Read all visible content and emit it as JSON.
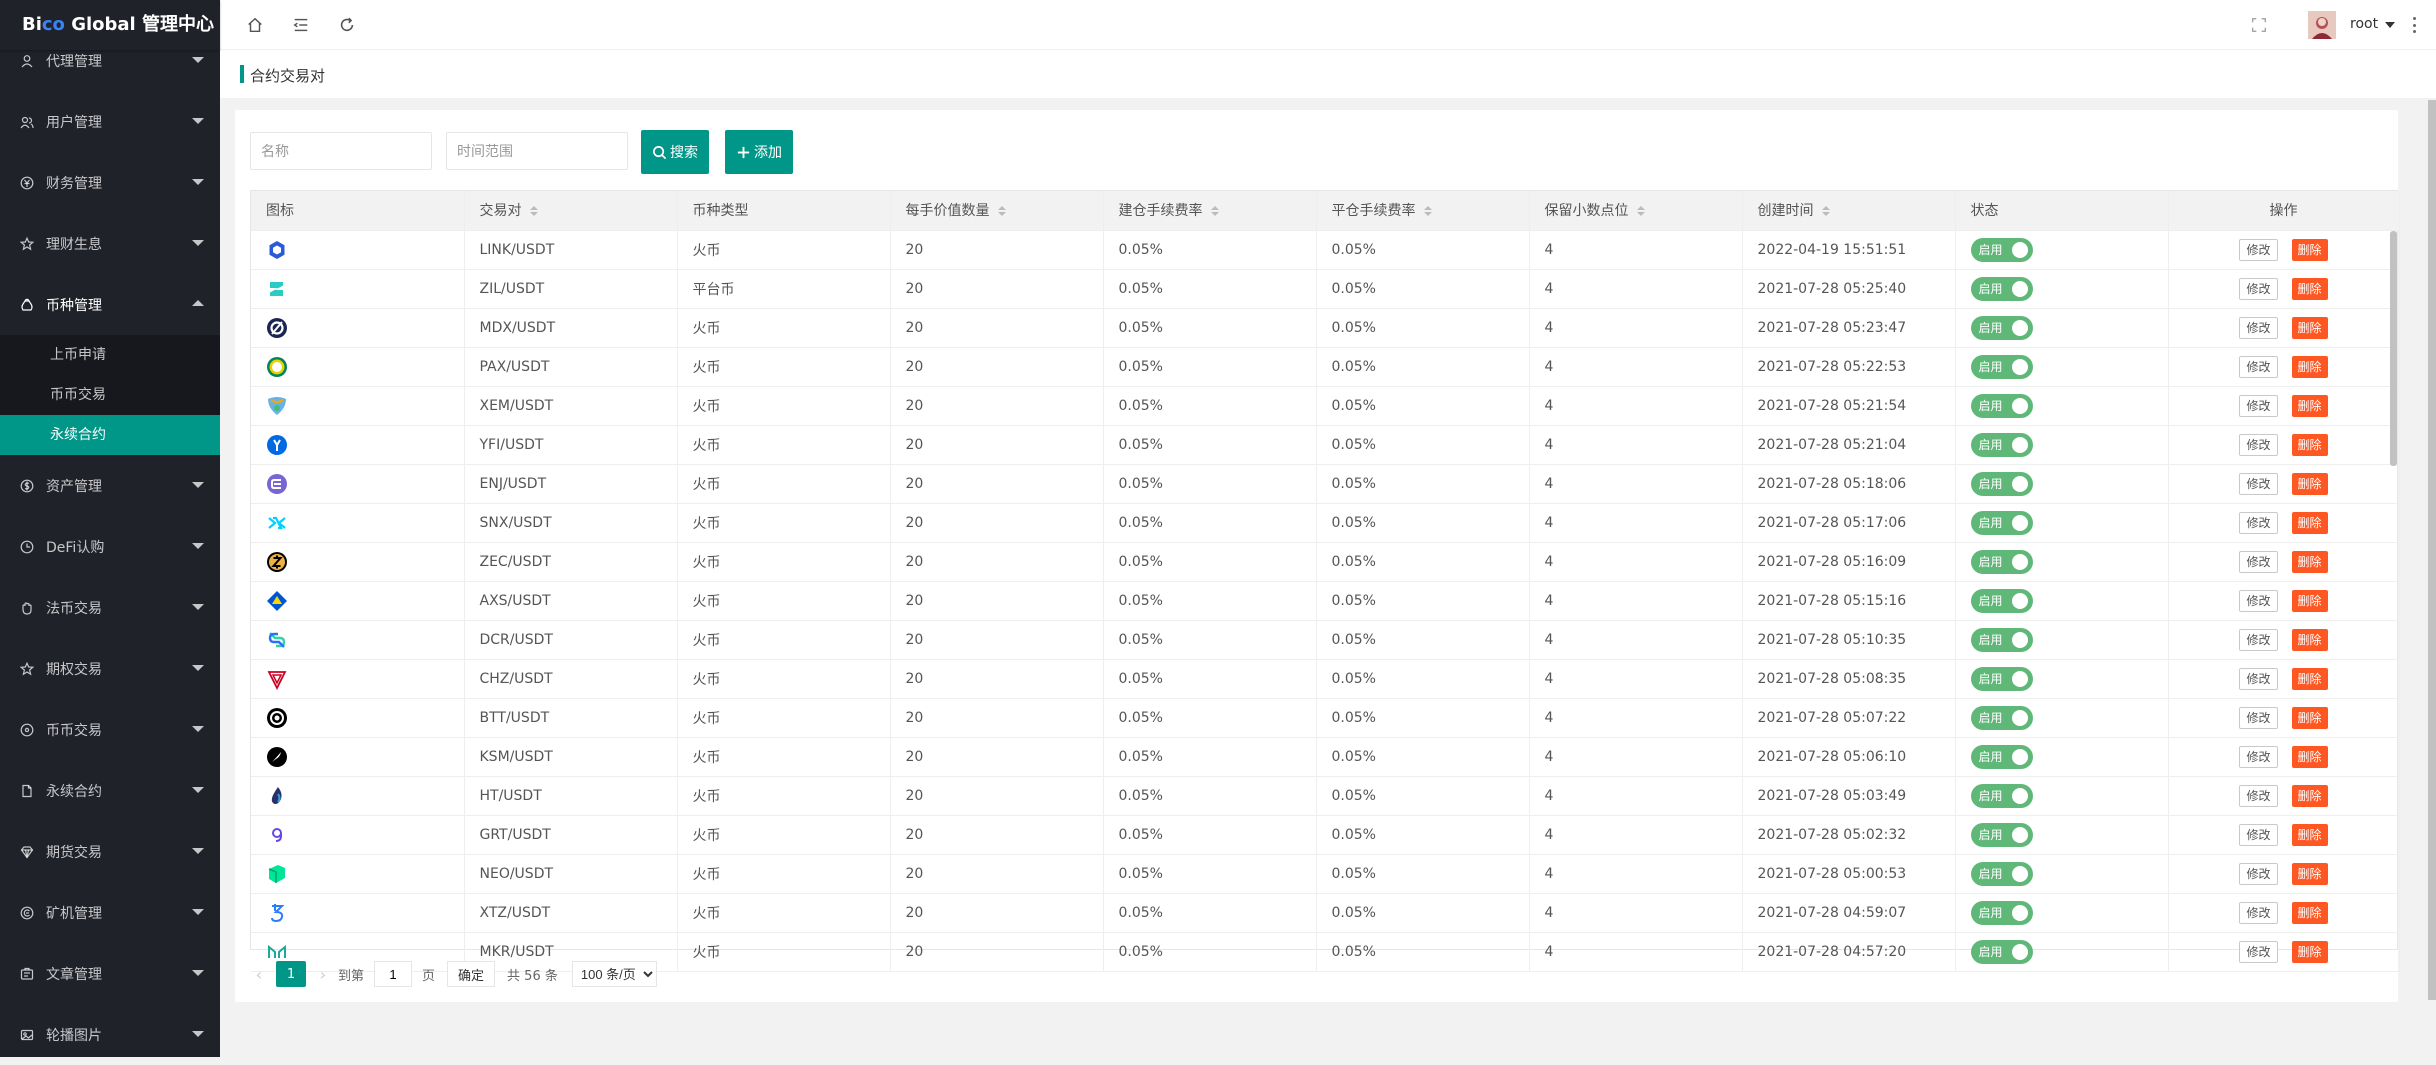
{
  "brand": {
    "part1": "Bi",
    "part2": "co",
    "part3": " Global 管理中心"
  },
  "sidebar": {
    "items": [
      {
        "label": "代理管理",
        "icon": "user-icon"
      },
      {
        "label": "用户管理",
        "icon": "users-icon"
      },
      {
        "label": "财务管理",
        "icon": "finance-icon"
      },
      {
        "label": "理财生息",
        "icon": "star-icon"
      },
      {
        "label": "币种管理",
        "icon": "coin-manage-icon",
        "open": true,
        "sub": [
          {
            "label": "上币申请"
          },
          {
            "label": "币币交易"
          },
          {
            "label": "永续合约",
            "active": true
          }
        ]
      },
      {
        "label": "资产管理",
        "icon": "asset-icon"
      },
      {
        "label": "DeFi认购",
        "icon": "clock-icon"
      },
      {
        "label": "法币交易",
        "icon": "hand-icon"
      },
      {
        "label": "期权交易",
        "icon": "star-icon"
      },
      {
        "label": "币币交易",
        "icon": "circle-icon"
      },
      {
        "label": "永续合约",
        "icon": "file-icon"
      },
      {
        "label": "期货交易",
        "icon": "diamond-icon"
      },
      {
        "label": "矿机管理",
        "icon": "mining-icon"
      },
      {
        "label": "文章管理",
        "icon": "article-icon"
      },
      {
        "label": "轮播图片",
        "icon": "image-icon"
      }
    ]
  },
  "header": {
    "username": "root"
  },
  "page": {
    "title": "合约交易对"
  },
  "search": {
    "name_placeholder": "名称",
    "time_placeholder": "时间范围",
    "search_label": "搜索",
    "add_label": "添加"
  },
  "table": {
    "columns": [
      "图标",
      "交易对",
      "币种类型",
      "每手价值数量",
      "建仓手续费率",
      "平仓手续费率",
      "保留小数点位",
      "创建时间",
      "状态",
      "操作"
    ],
    "sortable": [
      false,
      true,
      false,
      true,
      true,
      true,
      true,
      true,
      false,
      false
    ],
    "edit_label": "修改",
    "delete_label": "删除",
    "switch_label": "启用",
    "rows": [
      {
        "icon": "link-icon",
        "color": "#2a5ada",
        "pair": "LINK/USDT",
        "type": "火币",
        "qty": "20",
        "open_fee": "0.05%",
        "close_fee": "0.05%",
        "decimals": "4",
        "created": "2022-04-19 15:51:51"
      },
      {
        "icon": "zil-icon",
        "color": "#29ccc4",
        "pair": "ZIL/USDT",
        "type": "平台币",
        "qty": "20",
        "open_fee": "0.05%",
        "close_fee": "0.05%",
        "decimals": "4",
        "created": "2021-07-28 05:25:40"
      },
      {
        "icon": "mdx-icon",
        "color": "#1a2553",
        "pair": "MDX/USDT",
        "type": "火币",
        "qty": "20",
        "open_fee": "0.05%",
        "close_fee": "0.05%",
        "decimals": "4",
        "created": "2021-07-28 05:23:47"
      },
      {
        "icon": "pax-icon",
        "color": "#00845d",
        "pair": "PAX/USDT",
        "type": "火币",
        "qty": "20",
        "open_fee": "0.05%",
        "close_fee": "0.05%",
        "decimals": "4",
        "created": "2021-07-28 05:22:53"
      },
      {
        "icon": "xem-icon",
        "color": "#67b2e8",
        "pair": "XEM/USDT",
        "type": "火币",
        "qty": "20",
        "open_fee": "0.05%",
        "close_fee": "0.05%",
        "decimals": "4",
        "created": "2021-07-28 05:21:54"
      },
      {
        "icon": "yfi-icon",
        "color": "#006ae3",
        "pair": "YFI/USDT",
        "type": "火币",
        "qty": "20",
        "open_fee": "0.05%",
        "close_fee": "0.05%",
        "decimals": "4",
        "created": "2021-07-28 05:21:04"
      },
      {
        "icon": "enj-icon",
        "color": "#624dbf",
        "pair": "ENJ/USDT",
        "type": "火币",
        "qty": "20",
        "open_fee": "0.05%",
        "close_fee": "0.05%",
        "decimals": "4",
        "created": "2021-07-28 05:18:06"
      },
      {
        "icon": "snx-icon",
        "color": "#00d1ff",
        "pair": "SNX/USDT",
        "type": "火币",
        "qty": "20",
        "open_fee": "0.05%",
        "close_fee": "0.05%",
        "decimals": "4",
        "created": "2021-07-28 05:17:06"
      },
      {
        "icon": "zec-icon",
        "color": "#ecb244",
        "pair": "ZEC/USDT",
        "type": "火币",
        "qty": "20",
        "open_fee": "0.05%",
        "close_fee": "0.05%",
        "decimals": "4",
        "created": "2021-07-28 05:16:09"
      },
      {
        "icon": "axs-icon",
        "color": "#0055d5",
        "pair": "AXS/USDT",
        "type": "火币",
        "qty": "20",
        "open_fee": "0.05%",
        "close_fee": "0.05%",
        "decimals": "4",
        "created": "2021-07-28 05:15:16"
      },
      {
        "icon": "dcr-icon",
        "color": "#2ed6a1",
        "pair": "DCR/USDT",
        "type": "火币",
        "qty": "20",
        "open_fee": "0.05%",
        "close_fee": "0.05%",
        "decimals": "4",
        "created": "2021-07-28 05:10:35"
      },
      {
        "icon": "chz-icon",
        "color": "#cd0124",
        "pair": "CHZ/USDT",
        "type": "火币",
        "qty": "20",
        "open_fee": "0.05%",
        "close_fee": "0.05%",
        "decimals": "4",
        "created": "2021-07-28 05:08:35"
      },
      {
        "icon": "btt-icon",
        "color": "#000000",
        "pair": "BTT/USDT",
        "type": "火币",
        "qty": "20",
        "open_fee": "0.05%",
        "close_fee": "0.05%",
        "decimals": "4",
        "created": "2021-07-28 05:07:22"
      },
      {
        "icon": "ksm-icon",
        "color": "#000000",
        "pair": "KSM/USDT",
        "type": "火币",
        "qty": "20",
        "open_fee": "0.05%",
        "close_fee": "0.05%",
        "decimals": "4",
        "created": "2021-07-28 05:06:10"
      },
      {
        "icon": "ht-icon",
        "color": "#2a3069",
        "pair": "HT/USDT",
        "type": "火币",
        "qty": "20",
        "open_fee": "0.05%",
        "close_fee": "0.05%",
        "decimals": "4",
        "created": "2021-07-28 05:03:49"
      },
      {
        "icon": "grt-icon",
        "color": "#6747ed",
        "pair": "GRT/USDT",
        "type": "火币",
        "qty": "20",
        "open_fee": "0.05%",
        "close_fee": "0.05%",
        "decimals": "4",
        "created": "2021-07-28 05:02:32"
      },
      {
        "icon": "neo-icon",
        "color": "#00e599",
        "pair": "NEO/USDT",
        "type": "火币",
        "qty": "20",
        "open_fee": "0.05%",
        "close_fee": "0.05%",
        "decimals": "4",
        "created": "2021-07-28 05:00:53"
      },
      {
        "icon": "xtz-icon",
        "color": "#2c7df7",
        "pair": "XTZ/USDT",
        "type": "火币",
        "qty": "20",
        "open_fee": "0.05%",
        "close_fee": "0.05%",
        "decimals": "4",
        "created": "2021-07-28 04:59:07"
      },
      {
        "icon": "mkr-icon",
        "color": "#1aab9b",
        "pair": "MKR/USDT",
        "type": "火币",
        "qty": "20",
        "open_fee": "0.05%",
        "close_fee": "0.05%",
        "decimals": "4",
        "created": "2021-07-28 04:57:20"
      }
    ]
  },
  "pager": {
    "current": "1",
    "goto_label": "到第",
    "page_input": "1",
    "page_unit": "页",
    "confirm_label": "确定",
    "total_label": "共 56 条",
    "page_size": "100 条/页"
  },
  "colors": {
    "accent": "#009688",
    "sidebar": "#20222a",
    "switch_on": "#5fb878",
    "danger": "#ff5722"
  }
}
